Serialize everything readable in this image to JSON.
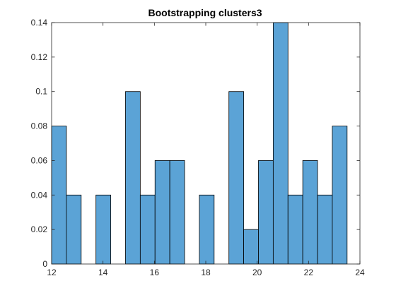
{
  "chart_data": {
    "type": "bar",
    "title": "Bootstrapping clusters3",
    "xlabel": "",
    "ylabel": "",
    "xlim": [
      12,
      24
    ],
    "ylim": [
      0,
      0.14
    ],
    "xticks": [
      12,
      14,
      16,
      18,
      20,
      22,
      24
    ],
    "yticks": [
      0,
      0.02,
      0.04,
      0.06,
      0.08,
      0.1,
      0.12,
      0.14
    ],
    "xtick_labels": [
      "12",
      "14",
      "16",
      "18",
      "20",
      "22",
      "24"
    ],
    "ytick_labels": [
      "0",
      "0.02",
      "0.04",
      "0.06",
      "0.08",
      "0.1",
      "0.12",
      "0.14"
    ],
    "grid": false,
    "bin_edges": [
      12,
      12.575,
      13.15,
      13.725,
      14.3,
      14.875,
      15.45,
      16.025,
      16.6,
      17.175,
      17.75,
      18.325,
      18.9,
      19.475,
      20.05,
      20.625,
      21.2,
      21.775,
      22.35,
      22.925,
      23.5
    ],
    "values": [
      0.08,
      0.04,
      0,
      0.04,
      0,
      0.1,
      0.04,
      0.06,
      0.06,
      0,
      0.04,
      0,
      0.1,
      0.02,
      0.06,
      0.14,
      0.04,
      0.06,
      0.04,
      0.08
    ],
    "colors": {
      "bar_fill": "#5ba3d6",
      "bar_edge": "#000000",
      "axis": "#262626",
      "title": "#000000"
    }
  }
}
